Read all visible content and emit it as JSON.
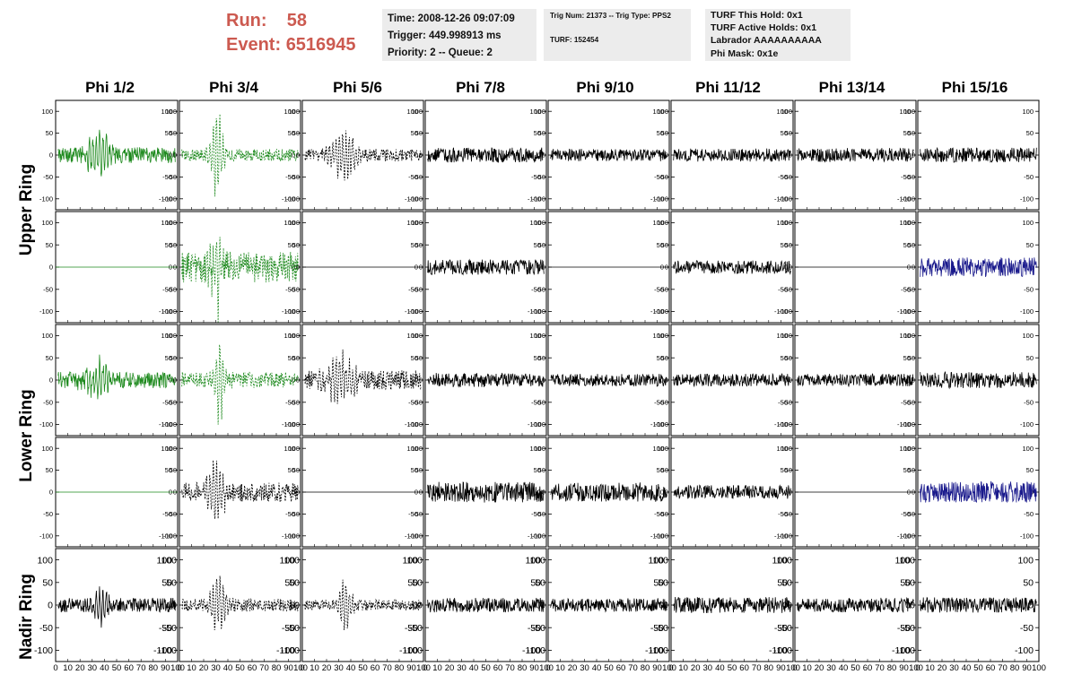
{
  "header": {
    "run_label": "Run:",
    "run_value": "58",
    "event_label": "Event:",
    "event_value": "6516945",
    "time": "Time: 2008-12-26 09:07:09",
    "trigger": "Trigger: 449.998913 ms",
    "priority_queue": "Priority: 2 -- Queue: 2",
    "trig_num_type": "Trig Num: 21373 -- Trig Type: PPS2",
    "turf": "TURF: 152454",
    "turf_this_hold": "TURF This Hold: 0x1",
    "turf_active_holds": "TURF Active Holds: 0x1",
    "labrador": "Labrador AAAAAAAAAA",
    "phi_mask": "Phi Mask: 0x1e"
  },
  "phi_headers": [
    "Phi 1/2",
    "Phi 3/4",
    "Phi 5/6",
    "Phi 7/8",
    "Phi 9/10",
    "Phi 11/12",
    "Phi 13/14",
    "Phi 15/16"
  ],
  "ring_labels": {
    "upper": "Upper Ring",
    "lower": "Lower Ring",
    "nadir": "Nadir Ring"
  },
  "axis": {
    "y_ticks": [
      "100",
      "50",
      "0",
      "-50",
      "-100"
    ],
    "nadir_y_ticks": [
      "100",
      "50",
      "0",
      "-50",
      "-100"
    ],
    "x_ticks": [
      "0",
      "10",
      "20",
      "30",
      "40",
      "50",
      "60",
      "70",
      "80",
      "90",
      "100"
    ],
    "x_range": [
      0,
      100
    ],
    "y_range": [
      -125,
      125
    ]
  },
  "colors": {
    "green": "#1e8a1e",
    "black": "#000000",
    "blue": "#1a1a8c",
    "run_red": "#cc5a50"
  },
  "panels": [
    [
      {
        "color": "green",
        "dash": false,
        "flat": false,
        "amp": 18,
        "burst_amp": 55,
        "burst_center": 35,
        "burst_width": 10
      },
      {
        "color": "green",
        "dash": true,
        "flat": false,
        "amp": 14,
        "burst_amp": 120,
        "burst_center": 31,
        "burst_width": 5
      },
      {
        "color": "black",
        "dash": true,
        "flat": false,
        "amp": 14,
        "burst_amp": 60,
        "burst_center": 35,
        "burst_width": 12
      },
      {
        "color": "black",
        "dash": false,
        "flat": false,
        "amp": 17,
        "burst_amp": 0,
        "burst_center": 0,
        "burst_width": 1
      },
      {
        "color": "black",
        "dash": false,
        "flat": false,
        "amp": 14,
        "burst_amp": 0,
        "burst_center": 0,
        "burst_width": 1
      },
      {
        "color": "black",
        "dash": false,
        "flat": false,
        "amp": 15,
        "burst_amp": 0,
        "burst_center": 0,
        "burst_width": 1
      },
      {
        "color": "black",
        "dash": false,
        "flat": false,
        "amp": 16,
        "burst_amp": 0,
        "burst_center": 0,
        "burst_width": 1
      },
      {
        "color": "black",
        "dash": false,
        "flat": false,
        "amp": 17,
        "burst_amp": 0,
        "burst_center": 0,
        "burst_width": 1
      }
    ],
    [
      {
        "color": "green",
        "dash": false,
        "flat": true,
        "amp": 0,
        "burst_amp": 0,
        "burst_center": 0,
        "burst_width": 1
      },
      {
        "color": "green",
        "dash": true,
        "flat": false,
        "amp": 35,
        "burst_amp": 110,
        "burst_center": 31,
        "burst_width": 5
      },
      {
        "color": "black",
        "dash": false,
        "flat": true,
        "amp": 0,
        "burst_amp": 0,
        "burst_center": 0,
        "burst_width": 1
      },
      {
        "color": "black",
        "dash": false,
        "flat": false,
        "amp": 17,
        "burst_amp": 0,
        "burst_center": 0,
        "burst_width": 1
      },
      {
        "color": "black",
        "dash": false,
        "flat": true,
        "amp": 0,
        "burst_amp": 0,
        "burst_center": 0,
        "burst_width": 1
      },
      {
        "color": "black",
        "dash": false,
        "flat": false,
        "amp": 15,
        "burst_amp": 0,
        "burst_center": 0,
        "burst_width": 1
      },
      {
        "color": "black",
        "dash": false,
        "flat": true,
        "amp": 0,
        "burst_amp": 0,
        "burst_center": 0,
        "burst_width": 1
      },
      {
        "color": "blue",
        "dash": false,
        "flat": false,
        "amp": 22,
        "burst_amp": 0,
        "burst_center": 0,
        "burst_width": 1
      }
    ],
    [
      {
        "color": "green",
        "dash": false,
        "flat": false,
        "amp": 18,
        "burst_amp": 40,
        "burst_center": 35,
        "burst_width": 12
      },
      {
        "color": "green",
        "dash": true,
        "flat": false,
        "amp": 18,
        "burst_amp": 95,
        "burst_center": 33,
        "burst_width": 5
      },
      {
        "color": "black",
        "dash": true,
        "flat": false,
        "amp": 22,
        "burst_amp": 60,
        "burst_center": 32,
        "burst_width": 12
      },
      {
        "color": "black",
        "dash": false,
        "flat": false,
        "amp": 16,
        "burst_amp": 0,
        "burst_center": 0,
        "burst_width": 1
      },
      {
        "color": "black",
        "dash": false,
        "flat": false,
        "amp": 14,
        "burst_amp": 0,
        "burst_center": 0,
        "burst_width": 1
      },
      {
        "color": "black",
        "dash": false,
        "flat": false,
        "amp": 14,
        "burst_amp": 0,
        "burst_center": 0,
        "burst_width": 1
      },
      {
        "color": "black",
        "dash": false,
        "flat": false,
        "amp": 14,
        "burst_amp": 0,
        "burst_center": 0,
        "burst_width": 1
      },
      {
        "color": "black",
        "dash": false,
        "flat": false,
        "amp": 18,
        "burst_amp": 0,
        "burst_center": 0,
        "burst_width": 1
      }
    ],
    [
      {
        "color": "green",
        "dash": false,
        "flat": true,
        "amp": 0,
        "burst_amp": 0,
        "burst_center": 0,
        "burst_width": 1
      },
      {
        "color": "black",
        "dash": true,
        "flat": false,
        "amp": 22,
        "burst_amp": 75,
        "burst_center": 30,
        "burst_width": 8
      },
      {
        "color": "black",
        "dash": false,
        "flat": true,
        "amp": 0,
        "burst_amp": 0,
        "burst_center": 0,
        "burst_width": 1
      },
      {
        "color": "black",
        "dash": false,
        "flat": false,
        "amp": 24,
        "burst_amp": 0,
        "burst_center": 0,
        "burst_width": 1
      },
      {
        "color": "black",
        "dash": false,
        "flat": false,
        "amp": 22,
        "burst_amp": 0,
        "burst_center": 0,
        "burst_width": 1
      },
      {
        "color": "black",
        "dash": false,
        "flat": false,
        "amp": 16,
        "burst_amp": 0,
        "burst_center": 0,
        "burst_width": 1
      },
      {
        "color": "black",
        "dash": false,
        "flat": true,
        "amp": 0,
        "burst_amp": 0,
        "burst_center": 0,
        "burst_width": 1
      },
      {
        "color": "blue",
        "dash": false,
        "flat": false,
        "amp": 24,
        "burst_amp": 0,
        "burst_center": 0,
        "burst_width": 1
      }
    ],
    [
      {
        "color": "black",
        "dash": false,
        "flat": false,
        "amp": 16,
        "burst_amp": 45,
        "burst_center": 38,
        "burst_width": 6
      },
      {
        "color": "black",
        "dash": true,
        "flat": false,
        "amp": 14,
        "burst_amp": 75,
        "burst_center": 32,
        "burst_width": 6
      },
      {
        "color": "black",
        "dash": true,
        "flat": false,
        "amp": 12,
        "burst_amp": 65,
        "burst_center": 35,
        "burst_width": 6
      },
      {
        "color": "black",
        "dash": false,
        "flat": false,
        "amp": 16,
        "burst_amp": 0,
        "burst_center": 0,
        "burst_width": 1
      },
      {
        "color": "black",
        "dash": false,
        "flat": false,
        "amp": 15,
        "burst_amp": 0,
        "burst_center": 0,
        "burst_width": 1
      },
      {
        "color": "black",
        "dash": false,
        "flat": false,
        "amp": 18,
        "burst_amp": 0,
        "burst_center": 0,
        "burst_width": 1
      },
      {
        "color": "black",
        "dash": false,
        "flat": false,
        "amp": 16,
        "burst_amp": 0,
        "burst_center": 0,
        "burst_width": 1
      },
      {
        "color": "black",
        "dash": false,
        "flat": false,
        "amp": 17,
        "burst_amp": 0,
        "burst_center": 0,
        "burst_width": 1
      }
    ]
  ]
}
